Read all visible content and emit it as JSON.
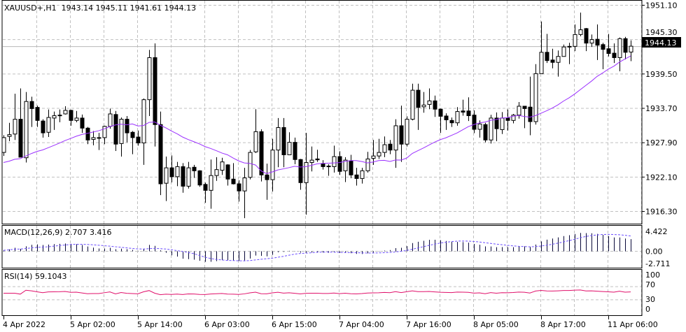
{
  "header": {
    "symbol": "XAUUSD+,H1",
    "open": "1943.14",
    "high": "1945.11",
    "low": "1941.61",
    "close": "1944.13"
  },
  "price_axis": {
    "ticks": [
      "1951.10",
      "1945.30",
      "1939.50",
      "1933.70",
      "1927.90",
      "1922.10",
      "1916.30"
    ],
    "current_price": "1944.13"
  },
  "macd": {
    "label": "MACD(12,26,9)",
    "main": "2.707",
    "signal": "3.416",
    "ticks": [
      "4.422",
      "0.00",
      "-2.711"
    ]
  },
  "rsi": {
    "label": "RSI(14)",
    "value": "59.1043",
    "ticks": [
      "100",
      "70",
      "30",
      "0"
    ]
  },
  "time_axis": {
    "labels": [
      "4 Apr 2022",
      "5 Apr 02:00",
      "5 Apr 14:00",
      "6 Apr 03:00",
      "6 Apr 15:00",
      "7 Apr 04:00",
      "7 Apr 16:00",
      "8 Apr 05:00",
      "8 Apr 17:00",
      "11 Apr 06:00"
    ]
  },
  "colors": {
    "ma": "#9b30ff",
    "macd_hist": "#0a0a3a",
    "macd_signal": "#6a4cff",
    "rsi": "#e0106a",
    "grid": "#c0c0c0",
    "bull_body": "#ffffff",
    "bear_body": "#000000"
  },
  "chart_data": {
    "type": "candlestick",
    "timeframe": "H1",
    "ylim": [
      1916.3,
      1951.1
    ],
    "moving_average_period": 20,
    "candles_ohlc": [
      [
        1926.2,
        1929.1,
        1925.6,
        1928.7
      ],
      [
        1928.9,
        1931.2,
        1928.1,
        1929.2
      ],
      [
        1929.3,
        1936.1,
        1928.3,
        1931.8
      ],
      [
        1931.8,
        1937.0,
        1925.4,
        1925.4
      ],
      [
        1925.3,
        1936.4,
        1924.5,
        1934.8
      ],
      [
        1934.8,
        1935.6,
        1930.5,
        1933.6
      ],
      [
        1933.8,
        1934.1,
        1930.5,
        1931.6
      ],
      [
        1931.5,
        1931.8,
        1928.7,
        1929.5
      ],
      [
        1929.6,
        1933.45,
        1928.8,
        1932.1
      ],
      [
        1932.0,
        1933.1,
        1930.0,
        1932.4
      ],
      [
        1932.4,
        1933.45,
        1931.3,
        1932.5
      ],
      [
        1932.7,
        1934.0,
        1932.6,
        1933.3
      ],
      [
        1933.3,
        1933.4,
        1930.7,
        1931.6
      ],
      [
        1931.6,
        1933.2,
        1931.3,
        1932.0
      ],
      [
        1932.0,
        1932.6,
        1929.5,
        1930.3
      ],
      [
        1930.3,
        1930.5,
        1927.6,
        1928.3
      ],
      [
        1928.4,
        1929.8,
        1927.4,
        1928.7
      ],
      [
        1928.7,
        1929.5,
        1926.6,
        1928.7
      ],
      [
        1928.7,
        1930.7,
        1927.6,
        1930.6
      ],
      [
        1930.6,
        1933.6,
        1930.2,
        1932.7
      ],
      [
        1932.6,
        1933.2,
        1926.45,
        1927.6
      ],
      [
        1927.7,
        1932.1,
        1925.5,
        1931.8
      ],
      [
        1931.8,
        1932.35,
        1927.9,
        1929.5
      ],
      [
        1929.6,
        1929.8,
        1925.9,
        1928.7
      ],
      [
        1928.8,
        1929.9,
        1927.35,
        1927.8
      ],
      [
        1927.8,
        1935.3,
        1924.1,
        1935.1
      ],
      [
        1935.1,
        1943.5,
        1932.35,
        1942.2
      ],
      [
        1942.2,
        1944.6,
        1927.2,
        1930.9
      ],
      [
        1930.9,
        1933.1,
        1919.0,
        1920.9
      ],
      [
        1921.0,
        1925.5,
        1918.0,
        1923.6
      ],
      [
        1923.6,
        1925.7,
        1921.15,
        1922.1
      ],
      [
        1922.1,
        1924.6,
        1920.5,
        1923.8
      ],
      [
        1923.8,
        1924.4,
        1919.4,
        1920.5
      ],
      [
        1920.5,
        1924.6,
        1920.1,
        1923.6
      ],
      [
        1923.7,
        1924.1,
        1921.9,
        1923.1
      ],
      [
        1923.1,
        1923.2,
        1920.4,
        1920.7
      ],
      [
        1920.8,
        1921.1,
        1917.7,
        1919.8
      ],
      [
        1919.8,
        1925.0,
        1916.7,
        1922.3
      ],
      [
        1922.3,
        1925.4,
        1921.4,
        1923.3
      ],
      [
        1923.2,
        1925.3,
        1922.4,
        1924.6
      ],
      [
        1924.1,
        1924.2,
        1920.6,
        1921.7
      ],
      [
        1921.7,
        1924.4,
        1920.8,
        1920.9
      ],
      [
        1920.9,
        1921.5,
        1917.9,
        1919.7
      ],
      [
        1919.7,
        1923.6,
        1915.1,
        1921.9
      ],
      [
        1922.0,
        1926.6,
        1921.65,
        1926.2
      ],
      [
        1926.3,
        1933.5,
        1926.1,
        1929.7
      ],
      [
        1929.7,
        1930.1,
        1921.3,
        1922.4
      ],
      [
        1922.4,
        1924.3,
        1918.2,
        1921.6
      ],
      [
        1921.6,
        1928.5,
        1919.6,
        1926.6
      ],
      [
        1926.6,
        1932.0,
        1923.7,
        1930.4
      ],
      [
        1930.4,
        1932.0,
        1923.7,
        1925.8
      ],
      [
        1925.8,
        1929.6,
        1925.8,
        1927.9
      ],
      [
        1927.9,
        1928.7,
        1924.2,
        1925.0
      ],
      [
        1925.0,
        1925.1,
        1919.9,
        1921.1
      ],
      [
        1921.1,
        1929.5,
        1915.7,
        1924.5
      ],
      [
        1924.5,
        1927.2,
        1923.0,
        1924.9
      ],
      [
        1925.1,
        1926.65,
        1924.6,
        1924.95
      ],
      [
        1924.3,
        1924.9,
        1923.3,
        1923.8
      ],
      [
        1923.9,
        1924.2,
        1922.25,
        1923.9
      ],
      [
        1923.8,
        1927.35,
        1922.8,
        1925.5
      ],
      [
        1925.5,
        1926.4,
        1922.4,
        1923.0
      ],
      [
        1923.1,
        1925.4,
        1921.2,
        1924.9
      ],
      [
        1924.8,
        1925.8,
        1921.85,
        1922.4
      ],
      [
        1922.4,
        1923.6,
        1920.6,
        1921.8
      ],
      [
        1921.8,
        1923.6,
        1920.95,
        1923.1
      ],
      [
        1923.1,
        1926.3,
        1922.8,
        1925.1
      ],
      [
        1925.2,
        1928.3,
        1924.1,
        1925.6
      ],
      [
        1925.6,
        1928.5,
        1925.1,
        1926.2
      ],
      [
        1926.2,
        1928.9,
        1925.4,
        1927.5
      ],
      [
        1927.6,
        1928.3,
        1925.9,
        1926.6
      ],
      [
        1926.6,
        1931.8,
        1923.6,
        1930.7
      ],
      [
        1930.7,
        1934.1,
        1924.6,
        1927.6
      ],
      [
        1927.6,
        1932.3,
        1927.2,
        1931.8
      ],
      [
        1931.8,
        1937.8,
        1931.6,
        1936.7
      ],
      [
        1936.7,
        1937.8,
        1930.0,
        1933.8
      ],
      [
        1933.9,
        1936.4,
        1932.9,
        1934.2
      ],
      [
        1934.3,
        1937.0,
        1933.5,
        1934.9
      ],
      [
        1934.9,
        1935.8,
        1932.2,
        1933.5
      ],
      [
        1933.5,
        1933.6,
        1929.5,
        1932.3
      ],
      [
        1932.35,
        1932.8,
        1930.0,
        1931.7
      ],
      [
        1931.6,
        1932.1,
        1930.5,
        1931.2
      ],
      [
        1931.2,
        1933.85,
        1930.7,
        1933.1
      ],
      [
        1933.2,
        1935.1,
        1932.4,
        1933.0
      ],
      [
        1933.2,
        1935.5,
        1931.5,
        1932.4
      ],
      [
        1932.5,
        1933.3,
        1929.45,
        1930.1
      ],
      [
        1930.1,
        1931.6,
        1928.7,
        1931.0
      ],
      [
        1930.9,
        1931.2,
        1927.9,
        1928.3
      ],
      [
        1928.3,
        1932.55,
        1927.7,
        1932.0
      ],
      [
        1932.0,
        1932.95,
        1928.1,
        1930.2
      ],
      [
        1930.05,
        1933.0,
        1929.3,
        1932.0
      ],
      [
        1932.0,
        1933.45,
        1929.9,
        1931.6
      ],
      [
        1931.6,
        1932.7,
        1931.1,
        1932.5
      ],
      [
        1932.5,
        1934.7,
        1931.9,
        1934.0
      ],
      [
        1934.0,
        1934.0,
        1930.3,
        1933.6
      ],
      [
        1933.85,
        1939.0,
        1929.1,
        1931.4
      ],
      [
        1931.4,
        1941.1,
        1930.9,
        1939.5
      ],
      [
        1939.5,
        1948.3,
        1939.5,
        1943.1
      ],
      [
        1943.1,
        1946.2,
        1941.3,
        1941.7
      ],
      [
        1941.8,
        1943.7,
        1940.4,
        1941.4
      ],
      [
        1941.4,
        1943.4,
        1939.0,
        1942.4
      ],
      [
        1942.4,
        1944.4,
        1942.4,
        1944.0
      ],
      [
        1944.0,
        1944.7,
        1941.1,
        1944.1
      ],
      [
        1944.1,
        1947.8,
        1943.3,
        1946.1
      ],
      [
        1946.1,
        1949.8,
        1945.8,
        1946.9
      ],
      [
        1947.1,
        1947.2,
        1943.3,
        1944.65
      ],
      [
        1944.65,
        1946.1,
        1944.0,
        1945.25
      ],
      [
        1945.3,
        1947.8,
        1941.8,
        1944.3
      ],
      [
        1944.4,
        1944.7,
        1940.25,
        1943.6
      ],
      [
        1943.7,
        1946.2,
        1942.4,
        1942.9
      ],
      [
        1942.95,
        1944.6,
        1941.3,
        1942.2
      ],
      [
        1942.2,
        1945.6,
        1939.9,
        1945.4
      ],
      [
        1945.4,
        1945.7,
        1941.9,
        1943.1
      ],
      [
        1943.14,
        1945.11,
        1941.61,
        1944.13
      ]
    ]
  }
}
